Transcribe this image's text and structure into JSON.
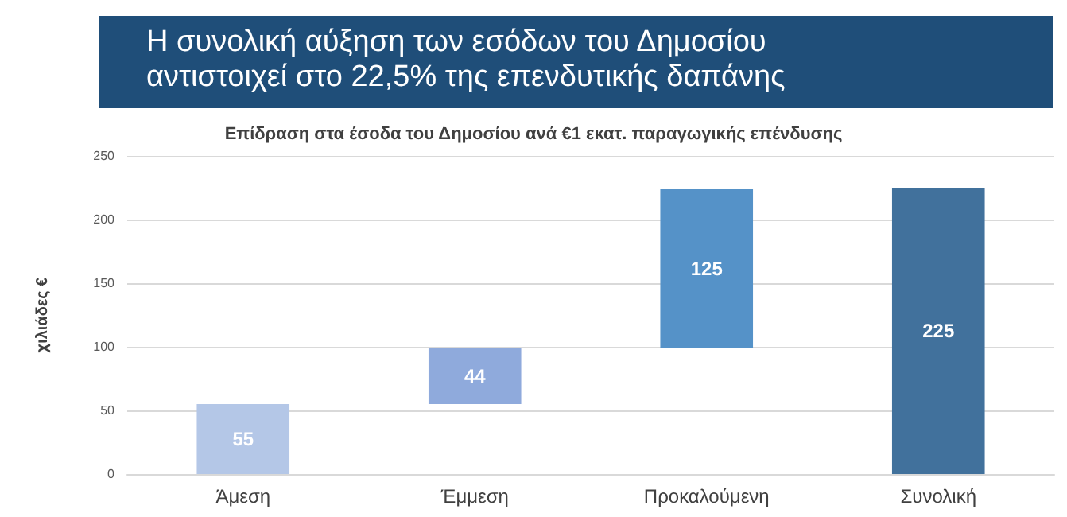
{
  "chart_data": {
    "type": "bar",
    "title": "Η συνολική αύξηση των εσόδων του Δημοσίου αντιστοιχεί στο 22,5% της επενδυτικής δαπάνης",
    "subtitle": "Επίδραση στα έσοδα του Δημοσίου ανά €1 εκατ. παραγωγικής επένδυσης",
    "ylabel": "χιλιάδες €",
    "categories": [
      "Άμεση",
      "Έμμεση",
      "Προκαλούμενη",
      "Συνολική"
    ],
    "values": [
      55,
      44,
      125,
      225
    ],
    "base": [
      0,
      55,
      99,
      0
    ],
    "colors": [
      "#b4c7e7",
      "#8faadc",
      "#5592c8",
      "#41719c"
    ],
    "ylim": [
      0,
      250
    ],
    "yticks": [
      0,
      50,
      100,
      150,
      200,
      250
    ],
    "grid": "y",
    "data_labels": true
  }
}
